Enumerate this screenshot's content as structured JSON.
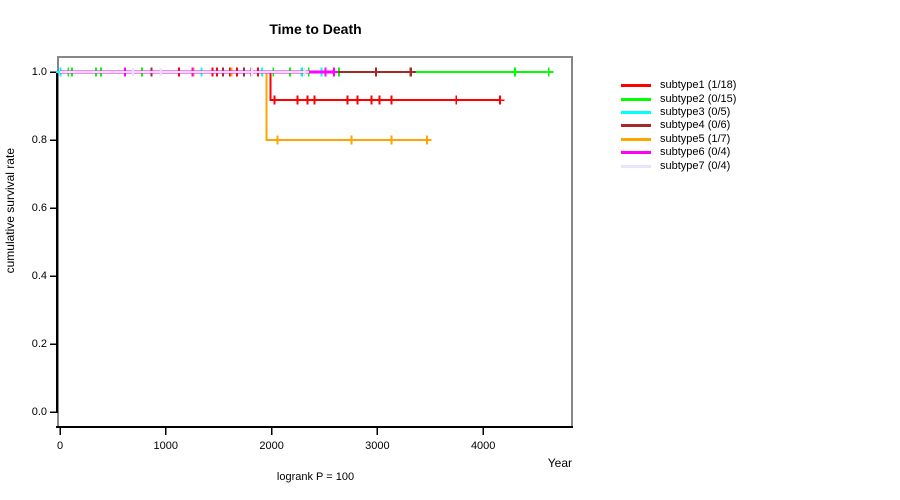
{
  "window": {
    "title": "Time to Death"
  },
  "chart_data": {
    "type": "line",
    "subtype_chart": "kaplan-meier-survival",
    "title": "Time to Death",
    "xlabel": "Year",
    "ylabel": "cumulative survival rate",
    "footer_annotation": "logrank P = 100",
    "xlim": [
      -190,
      4840
    ],
    "ylim": [
      -0.045,
      1.045
    ],
    "grid": false,
    "legend_position": "right-outside",
    "x_ticks": {
      "values": [
        0,
        1000,
        2000,
        3000,
        4000
      ],
      "labels": [
        "0",
        "1000",
        "2000",
        "3000",
        "4000"
      ]
    },
    "y_ticks": {
      "values": [
        1.0,
        0.8,
        0.6,
        0.4,
        0.2,
        0.0
      ],
      "labels": [
        "1.0",
        "0.8",
        "0.6",
        "0.4",
        "0.2",
        "0.0"
      ]
    },
    "series": [
      {
        "name": "subtype1 (1/18)",
        "color": "#FF0000",
        "line_width": 2,
        "steps": [
          [
            0,
            1.0
          ],
          [
            1990,
            1.0
          ],
          [
            1990,
            0.917
          ],
          [
            4160,
            0.917
          ]
        ],
        "censors": [
          [
            1126,
            1.0
          ],
          [
            1440,
            1.0
          ],
          [
            1484,
            1.0
          ],
          [
            1604,
            1.0
          ],
          [
            1673,
            1.0
          ],
          [
            1808,
            1.0
          ],
          [
            1871,
            1.0
          ],
          [
            2028,
            0.917
          ],
          [
            2245,
            0.917
          ],
          [
            2340,
            0.917
          ],
          [
            2406,
            0.917
          ],
          [
            2717,
            0.917
          ],
          [
            2811,
            0.917
          ],
          [
            2943,
            0.917
          ],
          [
            3019,
            0.917
          ],
          [
            3132,
            0.917
          ],
          [
            3745,
            0.917
          ],
          [
            4160,
            0.917
          ]
        ]
      },
      {
        "name": "subtype2 (0/15)",
        "color": "#00FF00",
        "line_width": 2,
        "steps": [
          [
            0,
            1.0
          ],
          [
            4620,
            1.0
          ]
        ],
        "censors": [
          [
            78,
            1.0
          ],
          [
            113,
            1.0
          ],
          [
            340,
            1.0
          ],
          [
            387,
            1.0
          ],
          [
            776,
            1.0
          ],
          [
            2016,
            1.0
          ],
          [
            2173,
            1.0
          ],
          [
            2286,
            1.0
          ],
          [
            2352,
            1.0
          ],
          [
            2638,
            1.0
          ],
          [
            4300,
            1.0
          ],
          [
            4620,
            1.0
          ]
        ]
      },
      {
        "name": "subtype3 (0/5)",
        "color": "#00FFFF",
        "line_width": 2,
        "steps": [
          [
            0,
            1.0
          ],
          [
            2472,
            1.0
          ]
        ],
        "censors": [
          [
            5,
            1.0
          ],
          [
            1337,
            1.0
          ],
          [
            1908,
            1.0
          ],
          [
            2283,
            1.0
          ],
          [
            2472,
            1.0
          ]
        ]
      },
      {
        "name": "subtype4 (0/6)",
        "color": "#A52A2A",
        "line_width": 2,
        "steps": [
          [
            0,
            1.0
          ],
          [
            3320,
            1.0
          ]
        ],
        "censors": [
          [
            865,
            1.0
          ],
          [
            1541,
            1.0
          ],
          [
            1739,
            1.0
          ],
          [
            2987,
            1.0
          ],
          [
            3311,
            1.0
          ],
          [
            3320,
            1.0
          ]
        ]
      },
      {
        "name": "subtype5 (1/7)",
        "color": "#FFA500",
        "line_width": 2,
        "steps": [
          [
            0,
            1.0
          ],
          [
            1950,
            1.0
          ],
          [
            1950,
            0.8
          ],
          [
            3470,
            0.8
          ]
        ],
        "censors": [
          [
            1264,
            1.0
          ],
          [
            1620,
            1.0
          ],
          [
            2057,
            0.8
          ],
          [
            2755,
            0.8
          ],
          [
            3132,
            0.8
          ],
          [
            3470,
            0.8
          ]
        ]
      },
      {
        "name": "subtype6 (0/4)",
        "color": "#FF00FF",
        "line_width": 3,
        "steps": [
          [
            0,
            1.0
          ],
          [
            2590,
            1.0
          ]
        ],
        "censors": [
          [
            613,
            1.0
          ],
          [
            1252,
            1.0
          ],
          [
            2509,
            1.0
          ],
          [
            2590,
            1.0
          ]
        ]
      },
      {
        "name": "subtype7 (0/4)",
        "color": "#E6E6FA",
        "line_width": 2,
        "steps": [
          [
            0,
            1.0
          ],
          [
            2311,
            1.0
          ]
        ],
        "censors": [
          [
            689,
            1.0
          ],
          [
            950,
            1.0
          ],
          [
            1815,
            1.0
          ],
          [
            2311,
            1.0
          ]
        ]
      }
    ],
    "legend": [
      {
        "label": "subtype1 (1/18)",
        "color": "#FF0000"
      },
      {
        "label": "subtype2 (0/15)",
        "color": "#00FF00"
      },
      {
        "label": "subtype3 (0/5)",
        "color": "#00FFFF"
      },
      {
        "label": "subtype4 (0/6)",
        "color": "#A52A2A"
      },
      {
        "label": "subtype5 (1/7)",
        "color": "#FFA500"
      },
      {
        "label": "subtype6 (0/4)",
        "color": "#FF00FF"
      },
      {
        "label": "subtype7 (0/4)",
        "color": "#E6E6FA"
      }
    ]
  }
}
